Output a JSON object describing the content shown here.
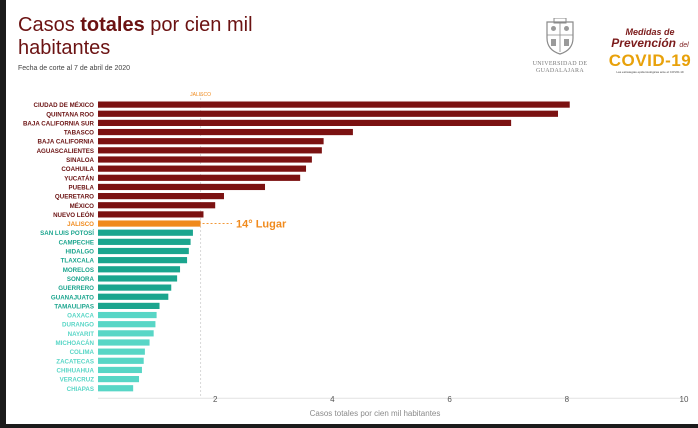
{
  "header": {
    "title_part1": "Casos ",
    "title_bold": "totales",
    "title_part2": " por cien mil habitantes",
    "subtitle": "Fecha de corte al 7 de abril de 2020"
  },
  "logos": {
    "udg_line1": "UNIVERSIDAD DE",
    "udg_line2": "GUADALAJARA",
    "covid_line1": "Medidas de",
    "covid_line2": "Prevención",
    "covid_line2_small": "del",
    "covid_line3": "COVID-19",
    "covid_line4": "Las estrategias epidemiológicas ante el COVID-19"
  },
  "colors": {
    "dark_red": "#7b1212",
    "jalisco": "#f08a1c",
    "teal": "#1ba58e",
    "light_teal": "#58d6c6",
    "title": "#6b1212"
  },
  "chart_data": {
    "type": "bar",
    "orientation": "horizontal",
    "title": "Casos totales por cien mil habitantes",
    "xlabel": "Casos totales por cien mil habitantes",
    "ylabel": "",
    "xlim": [
      0,
      10
    ],
    "xticks": [
      2,
      4,
      6,
      8,
      10
    ],
    "reference_label": "JALISCO",
    "reference_value": 1.75,
    "annotation": "14° Lugar",
    "categories": [
      "CIUDAD DE MÉXICO",
      "QUINTANA ROO",
      "BAJA CALIFORNIA SUR",
      "TABASCO",
      "BAJA CALIFORNIA",
      "AGUASCALIENTES",
      "SINALOA",
      "COAHUILA",
      "YUCATÁN",
      "PUEBLA",
      "QUERETARO",
      "MÉXICO",
      "NUEVO LEÓN",
      "JALISCO",
      "SAN LUIS POTOSÍ",
      "CAMPECHE",
      "HIDALGO",
      "TLAXCALA",
      "MORELOS",
      "SONORA",
      "GUERRERO",
      "GUANAJUATO",
      "TAMAULIPAS",
      "OAXACA",
      "DURANGO",
      "NAYARIT",
      "MICHOACÁN",
      "COLIMA",
      "ZACATECAS",
      "CHIHUAHUA",
      "VERACRUZ",
      "CHIAPAS"
    ],
    "values": [
      8.05,
      7.85,
      7.05,
      4.35,
      3.85,
      3.82,
      3.65,
      3.55,
      3.45,
      2.85,
      2.15,
      2.0,
      1.8,
      1.75,
      1.62,
      1.58,
      1.55,
      1.52,
      1.4,
      1.35,
      1.25,
      1.2,
      1.05,
      1.0,
      0.98,
      0.95,
      0.88,
      0.8,
      0.78,
      0.75,
      0.7,
      0.6
    ],
    "groups": [
      "dark",
      "dark",
      "dark",
      "dark",
      "dark",
      "dark",
      "dark",
      "dark",
      "dark",
      "dark",
      "dark",
      "dark",
      "dark",
      "jalisco",
      "teal",
      "teal",
      "teal",
      "teal",
      "teal",
      "teal",
      "teal",
      "teal",
      "teal",
      "light",
      "light",
      "light",
      "light",
      "light",
      "light",
      "light",
      "light",
      "light"
    ]
  }
}
